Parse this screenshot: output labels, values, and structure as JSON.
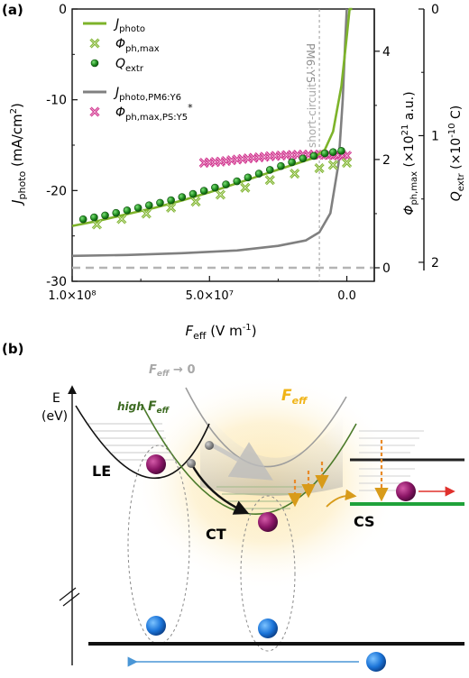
{
  "figure": {
    "panel_a_label": "(a)",
    "panel_b_label": "(b)",
    "panel_a": {
      "inset_label_pm6y5": "PM6:Y5",
      "short_circuit_label": "short-circuit"
    },
    "panel_b": {
      "axis_e": "E",
      "axis_ev": "(eV)",
      "feff_to_zero": "F",
      "feff_to_zero_sub": "eff",
      "feff_to_zero_tail": " → 0",
      "high_label": "high ",
      "high_feff": "F",
      "high_feff_sub": "eff",
      "feff_right": "F",
      "feff_right_sub": "eff",
      "le_label": "LE",
      "ct_label": "CT",
      "cs_label": "CS"
    }
  },
  "chart_data": {
    "type": "line",
    "xlabel": "F_eff (V m⁻¹)",
    "x_ticks": [
      "1.0×10⁸",
      "5.0×10⁷",
      "0.0"
    ],
    "xlim": [
      100000000.0,
      -10000000.0
    ],
    "ylabel_left": "J_photo (mA/cm²)",
    "ylim_left": [
      -30,
      0
    ],
    "y_ticks_left": [
      "0",
      "-10",
      "-20",
      "-30"
    ],
    "ylabel_right1": "Φ_ph,max (×10²¹ a.u.)",
    "ylim_right1": [
      -0.25,
      4.78
    ],
    "y_ticks_right1": [
      "4",
      "2",
      "0"
    ],
    "ylabel_right2": "Q_extr (×10⁻¹⁰ C)",
    "ylim_right2": [
      2.15,
      0
    ],
    "y_ticks_right2": [
      "0",
      "1",
      "2"
    ],
    "short_circuit_x": 10000000.0,
    "legend": {
      "placement": "top-left",
      "entries": [
        {
          "text": "J",
          "sub": "photo",
          "color": "#7db32a",
          "marker": "line"
        },
        {
          "text": "Φ",
          "sub": "ph,max",
          "color": "#7db32a",
          "marker": "cross"
        },
        {
          "text": "Q",
          "sub": "extr",
          "color": "#2d8c1f",
          "marker": "ball"
        },
        {
          "text": "J",
          "sub": "photo,PM6:Y6",
          "color": "#808080",
          "marker": "line"
        },
        {
          "text": "Φ",
          "sub": "ph,max,PS:Y5",
          "sup": "*",
          "color": "#d0308c",
          "marker": "cross"
        }
      ]
    },
    "series": [
      {
        "name": "J_photo",
        "axis": "left",
        "color": "#7db32a",
        "x": [
          100000000.0,
          90000000.0,
          80000000.0,
          70000000.0,
          60000000.0,
          50000000.0,
          40000000.0,
          30000000.0,
          20000000.0,
          12000000.0,
          8000000.0,
          5000000.0,
          2000000.0,
          0.0,
          -1000000.0,
          -2000000.0
        ],
        "y": [
          -23.9,
          -23.3,
          -22.6,
          -21.9,
          -21.1,
          -20.2,
          -19.2,
          -18.2,
          -17.2,
          -16.4,
          -15.5,
          -13.5,
          -8.5,
          -3.0,
          0.2,
          0.5
        ]
      },
      {
        "name": "Phi_ph,max",
        "axis": "right1",
        "color": "#7db32a",
        "x": [
          91000000.0,
          82000000.0,
          73000000.0,
          64000000.0,
          55000000.0,
          46000000.0,
          37000000.0,
          28000000.0,
          19000000.0,
          10000000.0,
          5000000.0,
          0.0
        ],
        "y": [
          0.8,
          0.9,
          1.0,
          1.11,
          1.22,
          1.35,
          1.48,
          1.62,
          1.74,
          1.84,
          1.9,
          1.94
        ]
      },
      {
        "name": "Q_extr",
        "axis": "right2",
        "color": "#2d8c1f",
        "x": [
          96000000.0,
          88000000.0,
          80000000.0,
          72000000.0,
          64000000.0,
          56000000.0,
          48000000.0,
          40000000.0,
          32000000.0,
          24000000.0,
          16000000.0,
          8000000.0,
          2000000.0
        ],
        "y": [
          1.66,
          1.63,
          1.59,
          1.55,
          1.51,
          1.46,
          1.41,
          1.36,
          1.3,
          1.24,
          1.18,
          1.14,
          1.12
        ]
      },
      {
        "name": "J_photo,PM6:Y6",
        "axis": "left",
        "color": "#808080",
        "x": [
          100000000.0,
          80000000.0,
          60000000.0,
          40000000.0,
          25000000.0,
          15000000.0,
          10000000.0,
          6000000.0,
          3000000.0,
          1500000.0,
          500000.0,
          0.0
        ],
        "y": [
          -27.2,
          -27.1,
          -26.9,
          -26.6,
          -26.1,
          -25.5,
          -24.6,
          -22.5,
          -17.0,
          -10.0,
          -3.0,
          0.0
        ]
      },
      {
        "name": "Phi_ph,max,PS:Y5*",
        "axis": "right1",
        "color": "#d0308c",
        "x": [
          52000000.0,
          46000000.0,
          40000000.0,
          34000000.0,
          28000000.0,
          22000000.0,
          16000000.0,
          10000000.0,
          5000000.0,
          0.0
        ],
        "y": [
          1.94,
          1.96,
          2.0,
          2.03,
          2.06,
          2.08,
          2.09,
          2.09,
          2.08,
          2.07
        ]
      },
      {
        "name": "baseline (dashed)",
        "axis": "right1",
        "color": "#b4b4b4",
        "x": [
          100000000.0,
          -10000000.0
        ],
        "y": [
          0,
          0
        ]
      }
    ]
  }
}
